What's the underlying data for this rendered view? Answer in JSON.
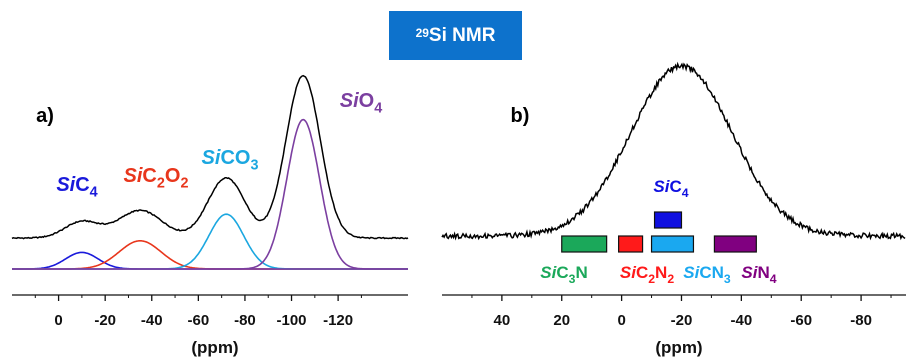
{
  "header": {
    "badge_sup": "29",
    "badge_text": "Si NMR",
    "badge_color": "#0d72cc"
  },
  "chart_data": [
    {
      "type": "line",
      "panel_label": "a)",
      "xlabel": "(ppm)",
      "x_reversed": true,
      "xlim": [
        20,
        -150
      ],
      "x_ticks": [
        0,
        -20,
        -40,
        -60,
        -80,
        -100,
        -120
      ],
      "x_tick_labels": [
        "0",
        "-20",
        "-40",
        "-60",
        "-80",
        "-100",
        "-120"
      ],
      "series": [
        {
          "role": "experimental",
          "color": "#000000",
          "peaks": [
            {
              "center": -105,
              "amplitude": 1.0
            },
            {
              "center": -72,
              "amplitude": 0.37
            },
            {
              "center": -35,
              "amplitude": 0.17
            },
            {
              "center": -10,
              "amplitude": 0.1
            }
          ],
          "baseline": 0.19
        },
        {
          "role": "component",
          "center": -10,
          "amplitude": 0.1,
          "color": "#1a1adb"
        },
        {
          "role": "component",
          "center": -35,
          "amplitude": 0.17,
          "color": "#e8361c"
        },
        {
          "role": "component",
          "center": -72,
          "amplitude": 0.33,
          "color": "#1ba7e0"
        },
        {
          "role": "component",
          "center": -105,
          "amplitude": 0.9,
          "color": "#7b3fa0"
        }
      ],
      "annotations": [
        {
          "italic": "Si",
          "rest": "C",
          "sub": "4",
          "color": "#1a1adb"
        },
        {
          "italic": "Si",
          "rest": "C",
          "sub": "2",
          "rest2": "O",
          "sub2": "2",
          "color": "#e8361c"
        },
        {
          "italic": "Si",
          "rest": "CO",
          "sub": "3",
          "color": "#1ba7e0"
        },
        {
          "italic": "Si",
          "rest": "O",
          "sub": "4",
          "color": "#7b3fa0"
        }
      ]
    },
    {
      "type": "line",
      "panel_label": "b)",
      "xlabel": "(ppm)",
      "x_reversed": true,
      "xlim": [
        60,
        -95
      ],
      "x_ticks": [
        40,
        20,
        0,
        -20,
        -40,
        -60,
        -80
      ],
      "x_tick_labels": [
        "40",
        "20",
        "0",
        "-20",
        "-40",
        "-60",
        "-80"
      ],
      "series": [
        {
          "role": "experimental",
          "color": "#000000",
          "center": -20,
          "amplitude": 1.0,
          "baseline": 0.0
        }
      ],
      "bars": [
        {
          "label_italic": "Si",
          "label_rest": "C",
          "label_sub": "3",
          "label_rest2": "N",
          "label_sub2": "",
          "x_from": 20,
          "x_to": 5,
          "color": "#1ba85a"
        },
        {
          "label_italic": "Si",
          "label_rest": "C",
          "label_sub": "2",
          "label_rest2": "N",
          "label_sub2": "2",
          "x_from": 1,
          "x_to": -7,
          "color": "#ff1a1a"
        },
        {
          "label_italic": "Si",
          "label_rest": "CN",
          "label_sub": "3",
          "label_rest2": "",
          "label_sub2": "",
          "x_from": -10,
          "x_to": -24,
          "color": "#1aa8f0"
        },
        {
          "label_italic": "Si",
          "label_rest": "N",
          "label_sub": "4",
          "label_rest2": "",
          "label_sub2": "",
          "x_from": -31,
          "x_to": -45,
          "color": "#800080"
        },
        {
          "label_italic": "Si",
          "label_rest": "C",
          "label_sub": "4",
          "label_rest2": "",
          "label_sub2": "",
          "x_from": -11,
          "x_to": -20,
          "color": "#1010e0",
          "raised": true
        }
      ]
    }
  ]
}
